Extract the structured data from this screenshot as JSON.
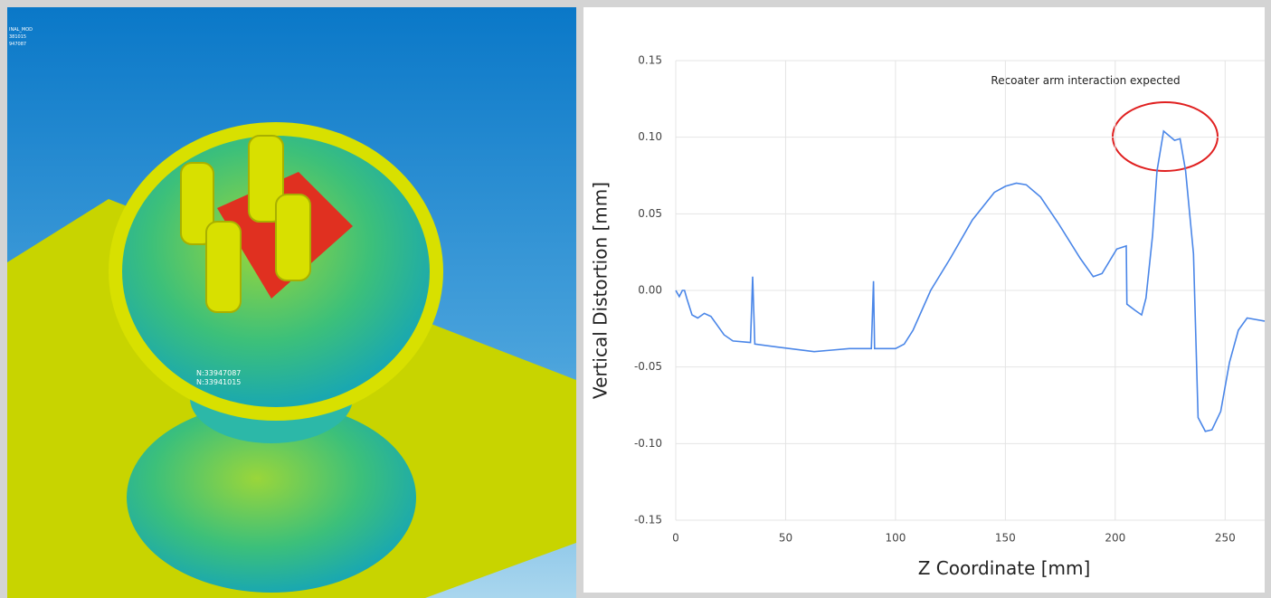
{
  "image_labels": {
    "corner": [
      "INAL_MOD",
      "381015",
      "947087"
    ],
    "nodes": [
      "N:33947087",
      "N:33941015"
    ]
  },
  "chart_data": {
    "type": "line",
    "annotation": "Recoater arm interaction expected",
    "ylabel": "Vertical Distortion [mm]",
    "xlabel": "Z Coordinate [mm]",
    "x": [
      0,
      1.6,
      3,
      4,
      5,
      7.4,
      10,
      13,
      16,
      22,
      26,
      34,
      35,
      36,
      46.5,
      63,
      71,
      79,
      89,
      90,
      90.5,
      100,
      104,
      108,
      116,
      125,
      135,
      145,
      150,
      155,
      159.5,
      166,
      174,
      184,
      190,
      194,
      200.7,
      205,
      205.3,
      209,
      212,
      214,
      217,
      219,
      222,
      224.5,
      227,
      229.5,
      232,
      235.6,
      237.7,
      241,
      244,
      248,
      252,
      256,
      260,
      268
    ],
    "values": [
      0.0,
      -0.004,
      0.0,
      0.0,
      -0.005,
      -0.016,
      -0.018,
      -0.015,
      -0.017,
      -0.029,
      -0.033,
      -0.034,
      0.009,
      -0.035,
      -0.037,
      -0.04,
      -0.039,
      -0.038,
      -0.038,
      0.006,
      -0.038,
      -0.038,
      -0.035,
      -0.026,
      0.0,
      0.021,
      0.046,
      0.064,
      0.068,
      0.07,
      0.069,
      0.061,
      0.044,
      0.021,
      0.009,
      0.011,
      0.027,
      0.029,
      -0.009,
      -0.013,
      -0.016,
      -0.005,
      0.036,
      0.078,
      0.104,
      0.101,
      0.098,
      0.099,
      0.078,
      0.024,
      -0.083,
      -0.092,
      -0.091,
      -0.079,
      -0.047,
      -0.026,
      -0.018,
      -0.02
    ],
    "color": "#4a86e8",
    "xlim": [
      0,
      268
    ],
    "ylim": [
      -0.15,
      0.15
    ],
    "xticks": [
      0,
      50,
      100,
      150,
      200,
      250
    ],
    "yticks": [
      0.15,
      {
        "value": 0.1,
        "label": "0.10"
      },
      0.05,
      {
        "value": 0,
        "label": "0.00"
      },
      -0.05,
      {
        "value": -0.1,
        "label": "-0.10"
      },
      -0.15
    ],
    "grid": true
  }
}
